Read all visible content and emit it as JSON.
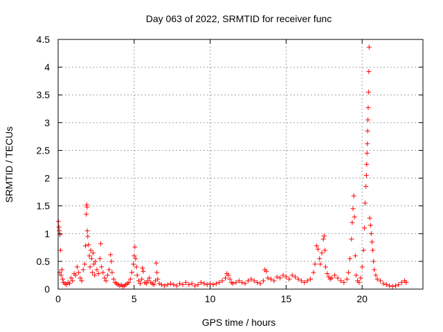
{
  "chart_data": {
    "type": "scatter",
    "title": "Day 063 of 2022, SRMTID for receiver func",
    "xlabel": "GPS time / hours",
    "ylabel": "SRMTID / TECUs",
    "xlim": [
      0,
      24
    ],
    "ylim": [
      0,
      4.5
    ],
    "grid": true,
    "marker": "+",
    "color": "#ff0000",
    "x_ticks": [
      0,
      5,
      10,
      15,
      20
    ],
    "x_tick_labels": [
      "0",
      "5",
      "10",
      "15",
      "20"
    ],
    "y_ticks": [
      0,
      0.5,
      1,
      1.5,
      2,
      2.5,
      3,
      3.5,
      4,
      4.5
    ],
    "y_tick_labels": [
      "0",
      "0.5",
      "1",
      "1.5",
      "2",
      "2.5",
      "3",
      "3.5",
      "4",
      "4.5"
    ],
    "series": [
      {
        "name": "SRMTID",
        "points": [
          [
            0.02,
            1.22
          ],
          [
            0.05,
            1.12
          ],
          [
            0.08,
            1.05
          ],
          [
            0.12,
            0.98
          ],
          [
            0.15,
            0.7
          ],
          [
            0.1,
            0.3
          ],
          [
            0.2,
            0.25
          ],
          [
            0.25,
            0.35
          ],
          [
            0.3,
            0.18
          ],
          [
            0.35,
            0.12
          ],
          [
            0.45,
            0.1
          ],
          [
            0.55,
            0.08
          ],
          [
            0.65,
            0.12
          ],
          [
            0.75,
            0.1
          ],
          [
            0.85,
            0.2
          ],
          [
            0.95,
            0.15
          ],
          [
            1.05,
            0.28
          ],
          [
            1.15,
            0.25
          ],
          [
            1.25,
            0.4
          ],
          [
            1.35,
            0.3
          ],
          [
            1.45,
            0.2
          ],
          [
            1.55,
            0.15
          ],
          [
            1.65,
            0.35
          ],
          [
            1.75,
            0.45
          ],
          [
            1.8,
            0.78
          ],
          [
            1.85,
            1.35
          ],
          [
            1.88,
            1.52
          ],
          [
            1.9,
            1.48
          ],
          [
            1.92,
            1.05
          ],
          [
            1.95,
            0.95
          ],
          [
            2.0,
            0.8
          ],
          [
            2.05,
            0.6
          ],
          [
            2.1,
            0.4
          ],
          [
            2.15,
            0.7
          ],
          [
            2.2,
            0.55
          ],
          [
            2.25,
            0.3
          ],
          [
            2.3,
            0.65
          ],
          [
            2.35,
            0.45
          ],
          [
            2.4,
            0.25
          ],
          [
            2.45,
            0.5
          ],
          [
            2.55,
            0.35
          ],
          [
            2.65,
            0.28
          ],
          [
            2.75,
            0.55
          ],
          [
            2.8,
            0.82
          ],
          [
            2.85,
            0.4
          ],
          [
            2.95,
            0.3
          ],
          [
            3.05,
            0.2
          ],
          [
            3.15,
            0.15
          ],
          [
            3.25,
            0.25
          ],
          [
            3.35,
            0.35
          ],
          [
            3.45,
            0.62
          ],
          [
            3.5,
            0.5
          ],
          [
            3.55,
            0.3
          ],
          [
            3.65,
            0.18
          ],
          [
            3.75,
            0.12
          ],
          [
            3.85,
            0.1
          ],
          [
            3.95,
            0.08
          ],
          [
            4.05,
            0.06
          ],
          [
            4.15,
            0.08
          ],
          [
            4.25,
            0.05
          ],
          [
            4.35,
            0.06
          ],
          [
            4.45,
            0.08
          ],
          [
            4.55,
            0.1
          ],
          [
            4.65,
            0.12
          ],
          [
            4.75,
            0.18
          ],
          [
            4.85,
            0.3
          ],
          [
            4.95,
            0.45
          ],
          [
            5.0,
            0.6
          ],
          [
            5.05,
            0.76
          ],
          [
            5.1,
            0.55
          ],
          [
            5.15,
            0.4
          ],
          [
            5.2,
            0.25
          ],
          [
            5.3,
            0.15
          ],
          [
            5.4,
            0.1
          ],
          [
            5.5,
            0.18
          ],
          [
            5.55,
            0.38
          ],
          [
            5.6,
            0.32
          ],
          [
            5.7,
            0.12
          ],
          [
            5.8,
            0.1
          ],
          [
            5.9,
            0.15
          ],
          [
            6.0,
            0.2
          ],
          [
            6.1,
            0.12
          ],
          [
            6.2,
            0.1
          ],
          [
            6.3,
            0.08
          ],
          [
            6.4,
            0.15
          ],
          [
            6.45,
            0.47
          ],
          [
            6.5,
            0.3
          ],
          [
            6.55,
            0.18
          ],
          [
            6.65,
            0.1
          ],
          [
            6.8,
            0.08
          ],
          [
            7.0,
            0.06
          ],
          [
            7.2,
            0.08
          ],
          [
            7.4,
            0.1
          ],
          [
            7.6,
            0.08
          ],
          [
            7.8,
            0.06
          ],
          [
            8.0,
            0.1
          ],
          [
            8.2,
            0.08
          ],
          [
            8.4,
            0.12
          ],
          [
            8.6,
            0.08
          ],
          [
            8.8,
            0.1
          ],
          [
            9.0,
            0.06
          ],
          [
            9.2,
            0.08
          ],
          [
            9.4,
            0.12
          ],
          [
            9.6,
            0.1
          ],
          [
            9.8,
            0.08
          ],
          [
            10.0,
            0.1
          ],
          [
            10.2,
            0.08
          ],
          [
            10.4,
            0.1
          ],
          [
            10.6,
            0.12
          ],
          [
            10.8,
            0.15
          ],
          [
            11.0,
            0.2
          ],
          [
            11.1,
            0.28
          ],
          [
            11.2,
            0.25
          ],
          [
            11.3,
            0.18
          ],
          [
            11.4,
            0.12
          ],
          [
            11.5,
            0.1
          ],
          [
            11.7,
            0.12
          ],
          [
            11.9,
            0.15
          ],
          [
            12.1,
            0.12
          ],
          [
            12.3,
            0.1
          ],
          [
            12.5,
            0.15
          ],
          [
            12.7,
            0.18
          ],
          [
            12.9,
            0.15
          ],
          [
            13.1,
            0.12
          ],
          [
            13.3,
            0.1
          ],
          [
            13.5,
            0.15
          ],
          [
            13.6,
            0.35
          ],
          [
            13.7,
            0.32
          ],
          [
            13.8,
            0.2
          ],
          [
            14.0,
            0.18
          ],
          [
            14.2,
            0.15
          ],
          [
            14.4,
            0.22
          ],
          [
            14.6,
            0.2
          ],
          [
            14.8,
            0.25
          ],
          [
            15.0,
            0.22
          ],
          [
            15.2,
            0.18
          ],
          [
            15.4,
            0.25
          ],
          [
            15.6,
            0.22
          ],
          [
            15.8,
            0.18
          ],
          [
            16.0,
            0.15
          ],
          [
            16.2,
            0.12
          ],
          [
            16.4,
            0.15
          ],
          [
            16.6,
            0.18
          ],
          [
            16.8,
            0.3
          ],
          [
            16.9,
            0.45
          ],
          [
            17.0,
            0.78
          ],
          [
            17.1,
            0.72
          ],
          [
            17.2,
            0.55
          ],
          [
            17.25,
            0.45
          ],
          [
            17.35,
            0.65
          ],
          [
            17.45,
            0.9
          ],
          [
            17.5,
            0.96
          ],
          [
            17.55,
            0.7
          ],
          [
            17.6,
            0.4
          ],
          [
            17.7,
            0.28
          ],
          [
            17.8,
            0.22
          ],
          [
            17.9,
            0.18
          ],
          [
            18.0,
            0.2
          ],
          [
            18.2,
            0.25
          ],
          [
            18.4,
            0.2
          ],
          [
            18.6,
            0.15
          ],
          [
            18.8,
            0.12
          ],
          [
            19.0,
            0.18
          ],
          [
            19.1,
            0.3
          ],
          [
            19.2,
            0.55
          ],
          [
            19.3,
            0.9
          ],
          [
            19.35,
            1.2
          ],
          [
            19.4,
            1.45
          ],
          [
            19.45,
            1.68
          ],
          [
            19.5,
            1.3
          ],
          [
            19.55,
            0.6
          ],
          [
            19.6,
            0.25
          ],
          [
            19.7,
            0.15
          ],
          [
            19.8,
            0.12
          ],
          [
            19.9,
            0.2
          ],
          [
            20.0,
            0.4
          ],
          [
            20.1,
            0.7
          ],
          [
            20.15,
            1.1
          ],
          [
            20.2,
            1.55
          ],
          [
            20.25,
            1.85
          ],
          [
            20.28,
            2.05
          ],
          [
            20.3,
            2.25
          ],
          [
            20.32,
            2.45
          ],
          [
            20.34,
            2.62
          ],
          [
            20.36,
            2.85
          ],
          [
            20.38,
            3.05
          ],
          [
            20.4,
            3.27
          ],
          [
            20.42,
            3.55
          ],
          [
            20.44,
            3.92
          ],
          [
            20.46,
            4.36
          ],
          [
            20.5,
            1.28
          ],
          [
            20.55,
            1.15
          ],
          [
            20.6,
            1.0
          ],
          [
            20.65,
            0.85
          ],
          [
            20.7,
            0.7
          ],
          [
            20.75,
            0.5
          ],
          [
            20.8,
            0.35
          ],
          [
            20.9,
            0.25
          ],
          [
            21.0,
            0.18
          ],
          [
            21.2,
            0.15
          ],
          [
            21.4,
            0.1
          ],
          [
            21.6,
            0.08
          ],
          [
            21.8,
            0.06
          ],
          [
            22.0,
            0.05
          ],
          [
            22.2,
            0.06
          ],
          [
            22.4,
            0.08
          ],
          [
            22.6,
            0.12
          ],
          [
            22.8,
            0.15
          ],
          [
            22.9,
            0.12
          ]
        ]
      }
    ]
  }
}
